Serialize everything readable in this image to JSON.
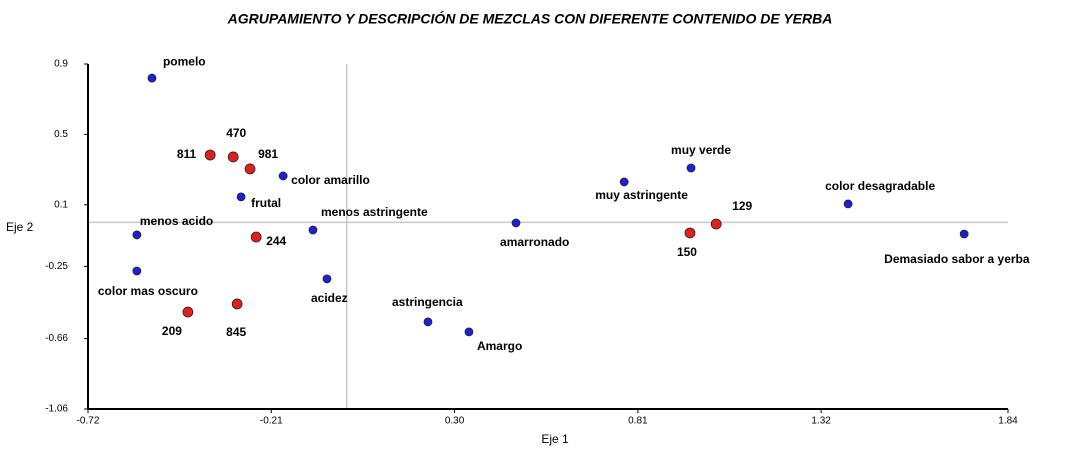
{
  "chart_data": {
    "type": "scatter",
    "title": "AGRUPAMIENTO Y DESCRIPCIÓN DE MEZCLAS CON DIFERENTE CONTENIDO DE YERBA",
    "x_label": "Eje 1",
    "y_label": "Eje 2",
    "xlim": [
      -0.72,
      1.84
    ],
    "xticks": [
      -0.72,
      -0.21,
      {
        "value": 0.3,
        "label": "0.30"
      },
      0.81,
      1.32,
      1.84
    ],
    "ylim": [
      -1.06,
      0.9
    ],
    "yticks": [
      0.9,
      0.5,
      0.1,
      -0.25,
      -0.66,
      -1.06
    ],
    "series": [
      {
        "color": "#1f1fd6",
        "labels": [
          "pomelo",
          "color amarillo",
          "frutal",
          "menos acido",
          "color mas oscuro",
          "menos  astringente",
          "acidez",
          "astringencia",
          "Amargo",
          "amarronado",
          "muy astringente",
          "muy verde",
          "color desagradable",
          "Demasiado sabor a yerba"
        ],
        "x": [
          -0.542,
          -0.177,
          -0.294,
          -0.584,
          -0.584,
          -0.094,
          -0.055,
          0.226,
          0.34,
          0.471,
          0.772,
          0.958,
          1.395,
          1.718
        ],
        "values": [
          0.82,
          0.264,
          0.145,
          -0.071,
          -0.276,
          -0.043,
          -0.321,
          -0.565,
          -0.622,
          -0.003,
          0.23,
          0.309,
          0.105,
          -0.066
        ]
      },
      {
        "color": "#e0201e",
        "labels": [
          "811",
          "470",
          "981",
          "244",
          "209",
          "845",
          "150",
          "129"
        ],
        "x": [
          -0.38,
          -0.316,
          -0.269,
          -0.252,
          -0.442,
          -0.305,
          0.955,
          1.028
        ],
        "values": [
          0.383,
          0.372,
          0.304,
          -0.083,
          -0.509,
          -0.463,
          -0.06,
          -0.009
        ]
      }
    ]
  }
}
